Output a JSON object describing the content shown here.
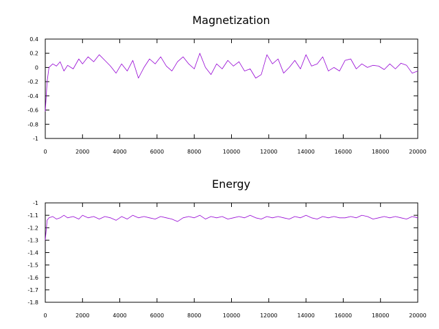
{
  "chart_data": [
    {
      "type": "line",
      "title": "Magnetization",
      "xlabel": "",
      "ylabel": "",
      "xlim": [
        0,
        20000
      ],
      "ylim": [
        -1,
        0.4
      ],
      "xticks": [
        "0",
        "2000",
        "4000",
        "6000",
        "8000",
        "10000",
        "12000",
        "14000",
        "16000",
        "18000",
        "20000"
      ],
      "yticks": [
        "0.4",
        "0.2",
        "0",
        "-0.2",
        "-0.4",
        "-0.6",
        "-0.8",
        "-1"
      ],
      "grid": false,
      "color": "#9400d3",
      "series": [
        {
          "name": "",
          "x": [
            0,
            100,
            200,
            400,
            600,
            800,
            1000,
            1200,
            1500,
            1800,
            2000,
            2300,
            2600,
            2900,
            3200,
            3500,
            3800,
            4100,
            4400,
            4700,
            5000,
            5300,
            5600,
            5900,
            6200,
            6500,
            6800,
            7100,
            7400,
            7700,
            8000,
            8300,
            8600,
            8900,
            9200,
            9500,
            9800,
            10100,
            10400,
            10700,
            11000,
            11300,
            11600,
            11900,
            12200,
            12500,
            12800,
            13100,
            13400,
            13700,
            14000,
            14300,
            14600,
            14900,
            15200,
            15500,
            15800,
            16100,
            16400,
            16700,
            17000,
            17300,
            17600,
            17900,
            18200,
            18500,
            18800,
            19100,
            19400,
            19700,
            20000
          ],
          "y": [
            -0.62,
            -0.2,
            0.0,
            0.05,
            0.02,
            0.08,
            -0.05,
            0.03,
            -0.02,
            0.12,
            0.05,
            0.15,
            0.08,
            0.18,
            0.1,
            0.02,
            -0.08,
            0.05,
            -0.05,
            0.1,
            -0.15,
            0.0,
            0.12,
            0.05,
            0.15,
            0.02,
            -0.05,
            0.08,
            0.15,
            0.05,
            -0.02,
            0.2,
            0.0,
            -0.1,
            0.05,
            -0.02,
            0.1,
            0.02,
            0.08,
            -0.05,
            -0.02,
            -0.15,
            -0.1,
            0.18,
            0.05,
            0.12,
            -0.08,
            0.0,
            0.1,
            -0.02,
            0.18,
            0.02,
            0.05,
            0.15,
            -0.05,
            0.0,
            -0.05,
            0.1,
            0.12,
            -0.02,
            0.05,
            0.0,
            0.03,
            0.02,
            -0.03,
            0.05,
            -0.02,
            0.06,
            0.03,
            -0.08,
            -0.05
          ]
        }
      ]
    },
    {
      "type": "line",
      "title": "Energy",
      "xlabel": "",
      "ylabel": "",
      "xlim": [
        0,
        20000
      ],
      "ylim": [
        -1.8,
        -1
      ],
      "xticks": [
        "0",
        "2000",
        "4000",
        "6000",
        "8000",
        "10000",
        "12000",
        "14000",
        "16000",
        "18000",
        "20000"
      ],
      "yticks": [
        "-1",
        "-1.1",
        "-1.2",
        "-1.3",
        "-1.4",
        "-1.5",
        "-1.6",
        "-1.7",
        "-1.8"
      ],
      "grid": false,
      "color": "#9400d3",
      "series": [
        {
          "name": "",
          "x": [
            0,
            100,
            200,
            400,
            600,
            800,
            1000,
            1200,
            1500,
            1800,
            2000,
            2300,
            2600,
            2900,
            3200,
            3500,
            3800,
            4100,
            4400,
            4700,
            5000,
            5300,
            5600,
            5900,
            6200,
            6500,
            6800,
            7100,
            7400,
            7700,
            8000,
            8300,
            8600,
            8900,
            9200,
            9500,
            9800,
            10100,
            10400,
            10700,
            11000,
            11300,
            11600,
            11900,
            12200,
            12500,
            12800,
            13100,
            13400,
            13700,
            14000,
            14300,
            14600,
            14900,
            15200,
            15500,
            15800,
            16100,
            16400,
            16700,
            17000,
            17300,
            17600,
            17900,
            18200,
            18500,
            18800,
            19100,
            19400,
            19700,
            20000
          ],
          "y": [
            -1.3,
            -1.14,
            -1.12,
            -1.11,
            -1.13,
            -1.12,
            -1.1,
            -1.12,
            -1.11,
            -1.13,
            -1.1,
            -1.12,
            -1.11,
            -1.13,
            -1.11,
            -1.12,
            -1.14,
            -1.11,
            -1.13,
            -1.1,
            -1.12,
            -1.11,
            -1.12,
            -1.13,
            -1.11,
            -1.12,
            -1.13,
            -1.15,
            -1.12,
            -1.11,
            -1.12,
            -1.1,
            -1.13,
            -1.11,
            -1.12,
            -1.11,
            -1.13,
            -1.12,
            -1.11,
            -1.12,
            -1.1,
            -1.12,
            -1.13,
            -1.11,
            -1.12,
            -1.11,
            -1.12,
            -1.13,
            -1.11,
            -1.12,
            -1.1,
            -1.12,
            -1.13,
            -1.11,
            -1.12,
            -1.11,
            -1.12,
            -1.12,
            -1.11,
            -1.12,
            -1.1,
            -1.11,
            -1.13,
            -1.12,
            -1.11,
            -1.12,
            -1.11,
            -1.12,
            -1.13,
            -1.11,
            -1.12
          ]
        }
      ]
    }
  ]
}
